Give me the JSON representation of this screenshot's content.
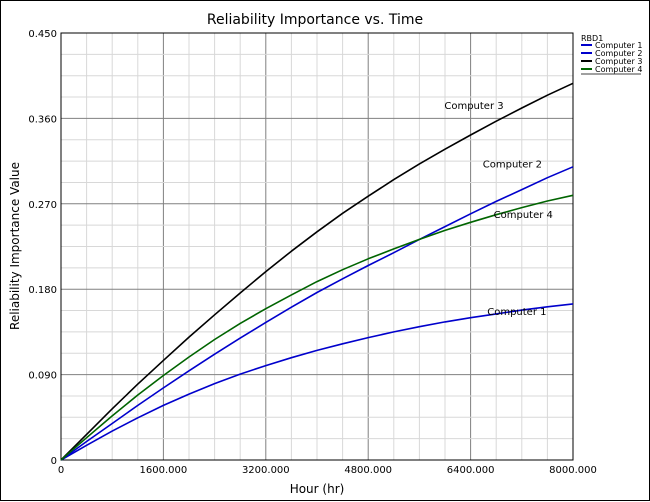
{
  "chart_data": {
    "type": "line",
    "title": "Reliability Importance vs. Time",
    "xlabel": "Hour (hr)",
    "ylabel": "Reliability Importance Value",
    "xlim": [
      0,
      8000
    ],
    "ylim": [
      0,
      0.45
    ],
    "x_ticks": [
      "0",
      "1600.000",
      "3200.000",
      "4800.000",
      "6400.000",
      "8000.000"
    ],
    "y_ticks": [
      "0",
      "0.090",
      "0.180",
      "0.270",
      "0.360",
      "0.450"
    ],
    "grid": true,
    "legend": {
      "title": "RBD1",
      "placement": "top-right",
      "entries": [
        "Computer 1",
        "Computer 2",
        "Computer 3",
        "Computer 4"
      ]
    },
    "x": [
      0,
      400,
      800,
      1200,
      1600,
      2000,
      2400,
      2800,
      3200,
      3600,
      4000,
      4400,
      4800,
      5200,
      5600,
      6000,
      6400,
      6800,
      7200,
      7600,
      8000
    ],
    "series": [
      {
        "name": "Computer 1",
        "color": "#0000cc",
        "values": [
          0,
          0.0155,
          0.0305,
          0.0445,
          0.0575,
          0.0695,
          0.0805,
          0.0905,
          0.0995,
          0.1078,
          0.1155,
          0.1225,
          0.129,
          0.135,
          0.1405,
          0.1455,
          0.15,
          0.154,
          0.158,
          0.1615,
          0.1645
        ],
        "annotation": "Computer 1",
        "annotation_at": [
          6660,
          0.153
        ]
      },
      {
        "name": "Computer 2",
        "color": "#0000cc",
        "values": [
          0,
          0.0195,
          0.0385,
          0.0575,
          0.076,
          0.094,
          0.1115,
          0.1285,
          0.145,
          0.161,
          0.1765,
          0.191,
          0.205,
          0.2185,
          0.2325,
          0.246,
          0.2595,
          0.2725,
          0.285,
          0.2975,
          0.309
        ],
        "annotation": "Computer 2",
        "annotation_at": [
          6590,
          0.308
        ]
      },
      {
        "name": "Computer 3",
        "color": "#000000",
        "values": [
          0,
          0.027,
          0.054,
          0.08,
          0.105,
          0.1295,
          0.153,
          0.176,
          0.1985,
          0.22,
          0.2405,
          0.26,
          0.278,
          0.2955,
          0.312,
          0.3275,
          0.3425,
          0.357,
          0.371,
          0.3845,
          0.397
        ],
        "annotation": "Computer 3",
        "annotation_at": [
          5990,
          0.37
        ]
      },
      {
        "name": "Computer 4",
        "color": "#006400",
        "values": [
          0,
          0.0235,
          0.0465,
          0.0685,
          0.089,
          0.1085,
          0.127,
          0.144,
          0.1595,
          0.174,
          0.188,
          0.2005,
          0.212,
          0.2225,
          0.2325,
          0.242,
          0.2505,
          0.2585,
          0.266,
          0.273,
          0.279
        ],
        "annotation": "Computer 4",
        "annotation_at": [
          6760,
          0.255
        ]
      }
    ]
  }
}
